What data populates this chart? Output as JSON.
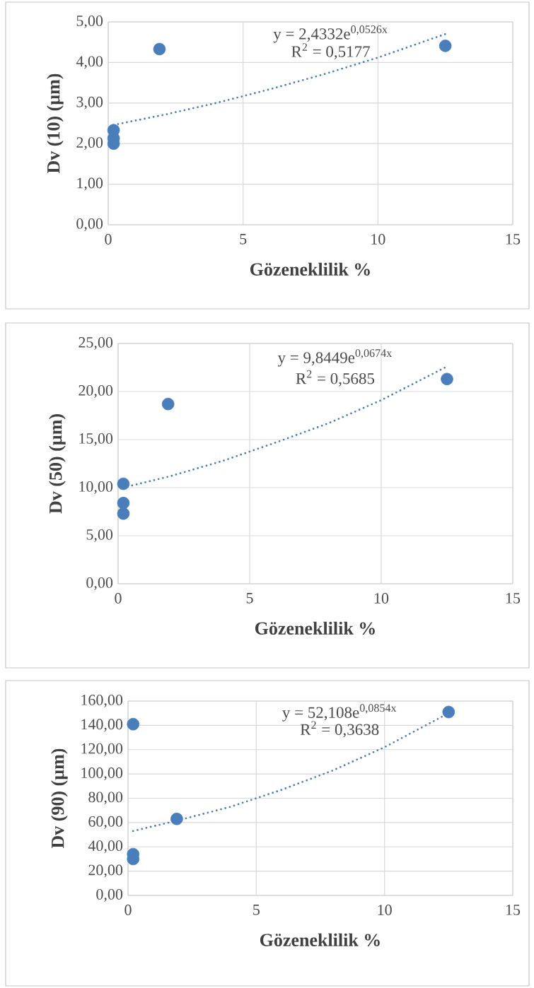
{
  "chart_data": [
    {
      "type": "scatter",
      "xlabel": "Gözeneklilik %",
      "ylabel": "Dv (10) (µm)",
      "xlim": [
        0,
        15
      ],
      "xticks": [
        0,
        5,
        10,
        15
      ],
      "ylim": [
        0,
        5
      ],
      "yticks": [
        {
          "value": 0,
          "label": "0,00"
        },
        {
          "value": 1,
          "label": "1,00"
        },
        {
          "value": 2,
          "label": "2,00"
        },
        {
          "value": 3,
          "label": "3,00"
        },
        {
          "value": 4,
          "label": "4,00"
        },
        {
          "value": 5,
          "label": "5,00"
        }
      ],
      "grid": true,
      "series": [
        {
          "type": "scatter",
          "color": "#4a7ebb",
          "marker": "circle",
          "x": [
            0.2,
            0.2,
            0.2,
            1.9,
            12.5
          ],
          "values": [
            2.33,
            2.13,
            2.0,
            4.33,
            4.41
          ]
        },
        {
          "type": "line",
          "color": "#4a7ebb",
          "marker": "none",
          "line_style": "dotted",
          "x": [
            0.2,
            2,
            4,
            6,
            8,
            10,
            12.5
          ],
          "values": [
            2.46,
            2.7,
            3.0,
            3.34,
            3.71,
            4.12,
            4.7
          ]
        }
      ],
      "annotations": [
        "y = 2,4332e$^{0,0526x}$",
        "R$^{2}$ = 0,5177"
      ]
    },
    {
      "type": "scatter",
      "xlabel": "Gözeneklilik %",
      "ylabel": "Dv (50) (µm)",
      "xlim": [
        0,
        15
      ],
      "xticks": [
        0,
        5,
        10,
        15
      ],
      "ylim": [
        0,
        25
      ],
      "yticks": [
        {
          "value": 0,
          "label": "0,00"
        },
        {
          "value": 5,
          "label": "5,00"
        },
        {
          "value": 10,
          "label": "10,00"
        },
        {
          "value": 15,
          "label": "15,00"
        },
        {
          "value": 20,
          "label": "20,00"
        },
        {
          "value": 25,
          "label": "25,00"
        }
      ],
      "grid": true,
      "series": [
        {
          "type": "scatter",
          "color": "#4a7ebb",
          "marker": "circle",
          "x": [
            0.2,
            0.2,
            0.2,
            1.9,
            12.5
          ],
          "values": [
            10.4,
            8.4,
            7.3,
            18.7,
            21.3
          ]
        },
        {
          "type": "line",
          "color": "#4a7ebb",
          "marker": "none",
          "line_style": "dotted",
          "x": [
            0.2,
            2,
            4,
            6,
            8,
            10,
            12.5
          ],
          "values": [
            10.0,
            11.2,
            12.8,
            14.7,
            16.7,
            19.1,
            22.6
          ]
        }
      ],
      "annotations": [
        "y = 9,8449e$^{0,0674x}$",
        "R$^{2}$ = 0,5685"
      ]
    },
    {
      "type": "scatter",
      "xlabel": "Gözeneklilik %",
      "ylabel": "Dv (90) (µm)",
      "xlim": [
        0,
        15
      ],
      "xticks": [
        0,
        5,
        10,
        15
      ],
      "ylim": [
        0,
        160
      ],
      "yticks": [
        {
          "value": 0,
          "label": "0,00"
        },
        {
          "value": 20,
          "label": "20,00"
        },
        {
          "value": 40,
          "label": "40,00"
        },
        {
          "value": 60,
          "label": "60,00"
        },
        {
          "value": 80,
          "label": "80,00"
        },
        {
          "value": 100,
          "label": "100,00"
        },
        {
          "value": 120,
          "label": "120,00"
        },
        {
          "value": 140,
          "label": "140,00"
        },
        {
          "value": 160,
          "label": "160,00"
        }
      ],
      "grid": true,
      "series": [
        {
          "type": "scatter",
          "color": "#4a7ebb",
          "marker": "circle",
          "x": [
            0.2,
            0.2,
            0.2,
            1.9,
            12.5
          ],
          "values": [
            141,
            34,
            30,
            63,
            151
          ]
        },
        {
          "type": "line",
          "color": "#4a7ebb",
          "marker": "none",
          "line_style": "dotted",
          "x": [
            0.2,
            2,
            4,
            6,
            8,
            10,
            12.5
          ],
          "values": [
            53,
            62,
            73,
            87,
            103,
            122,
            150
          ]
        }
      ],
      "annotations": [
        "y = 52,108e$^{0,0854x}$",
        "R$^{2}$ = 0,3638"
      ]
    }
  ]
}
